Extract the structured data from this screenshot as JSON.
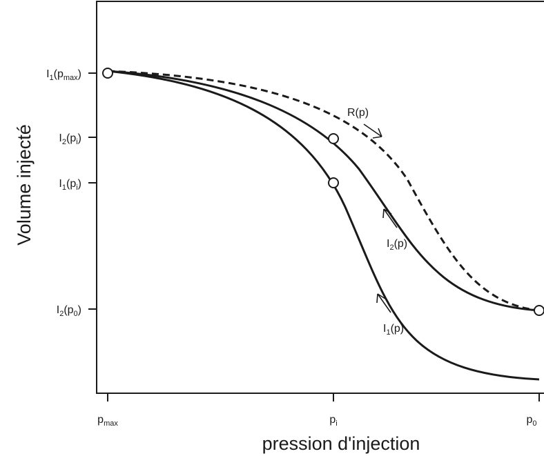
{
  "axes": {
    "y_title": "Volume injecté",
    "x_title": "pression d'injection"
  },
  "y_ticks": [
    {
      "id": "i1-pmax",
      "main": "I",
      "sub1": "1",
      "paren_open": "(p",
      "sub2": "max",
      "paren_close": ")"
    },
    {
      "id": "i2-pi",
      "main": "I",
      "sub1": "2",
      "paren_open": "(p",
      "sub2": "i",
      "paren_close": ")"
    },
    {
      "id": "i1-pi",
      "main": "I",
      "sub1": "1",
      "paren_open": "(p",
      "sub2": "i",
      "paren_close": ")"
    },
    {
      "id": "i2-p0",
      "main": "I",
      "sub1": "2",
      "paren_open": "(p",
      "sub2": "0",
      "paren_close": ")"
    }
  ],
  "x_ticks": [
    {
      "id": "pmax",
      "main": "p",
      "sub": "max"
    },
    {
      "id": "pi",
      "main": "p",
      "sub": "i"
    },
    {
      "id": "p0",
      "main": "p",
      "sub": "0"
    }
  ],
  "curves": [
    {
      "id": "R",
      "style": "dashed",
      "label_main": "R(p)",
      "label_sub": "",
      "label_rest": ""
    },
    {
      "id": "I2",
      "style": "solid",
      "label_main": "I",
      "label_sub": "2",
      "label_rest": "(p)"
    },
    {
      "id": "I1",
      "style": "solid",
      "label_main": "I",
      "label_sub": "1",
      "label_rest": "(p)"
    }
  ],
  "colors": {
    "ink": "#1a1a1a",
    "marker_fill": "#ffffff"
  }
}
